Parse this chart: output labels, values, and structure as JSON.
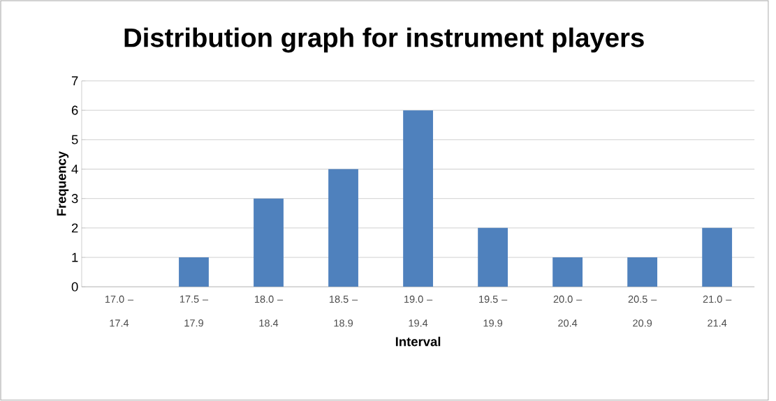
{
  "chart_data": {
    "type": "bar",
    "title": "Distribution graph for instrument players",
    "xlabel": "Interval",
    "ylabel": "Frequency",
    "categories": [
      "17.0 – 17.4",
      "17.5 – 17.9",
      "18.0 – 18.4",
      "18.5 – 18.9",
      "19.0 – 19.4",
      "19.5 – 19.9",
      "20.0 – 20.4",
      "20.5 – 20.9",
      "21.0 – 21.4"
    ],
    "values": [
      0,
      1,
      3,
      4,
      6,
      2,
      1,
      1,
      2
    ],
    "color": "#4f81bd",
    "ylim": [
      0,
      7
    ],
    "yticks": [
      0,
      1,
      2,
      3,
      4,
      5,
      6,
      7
    ],
    "grid": "y"
  }
}
